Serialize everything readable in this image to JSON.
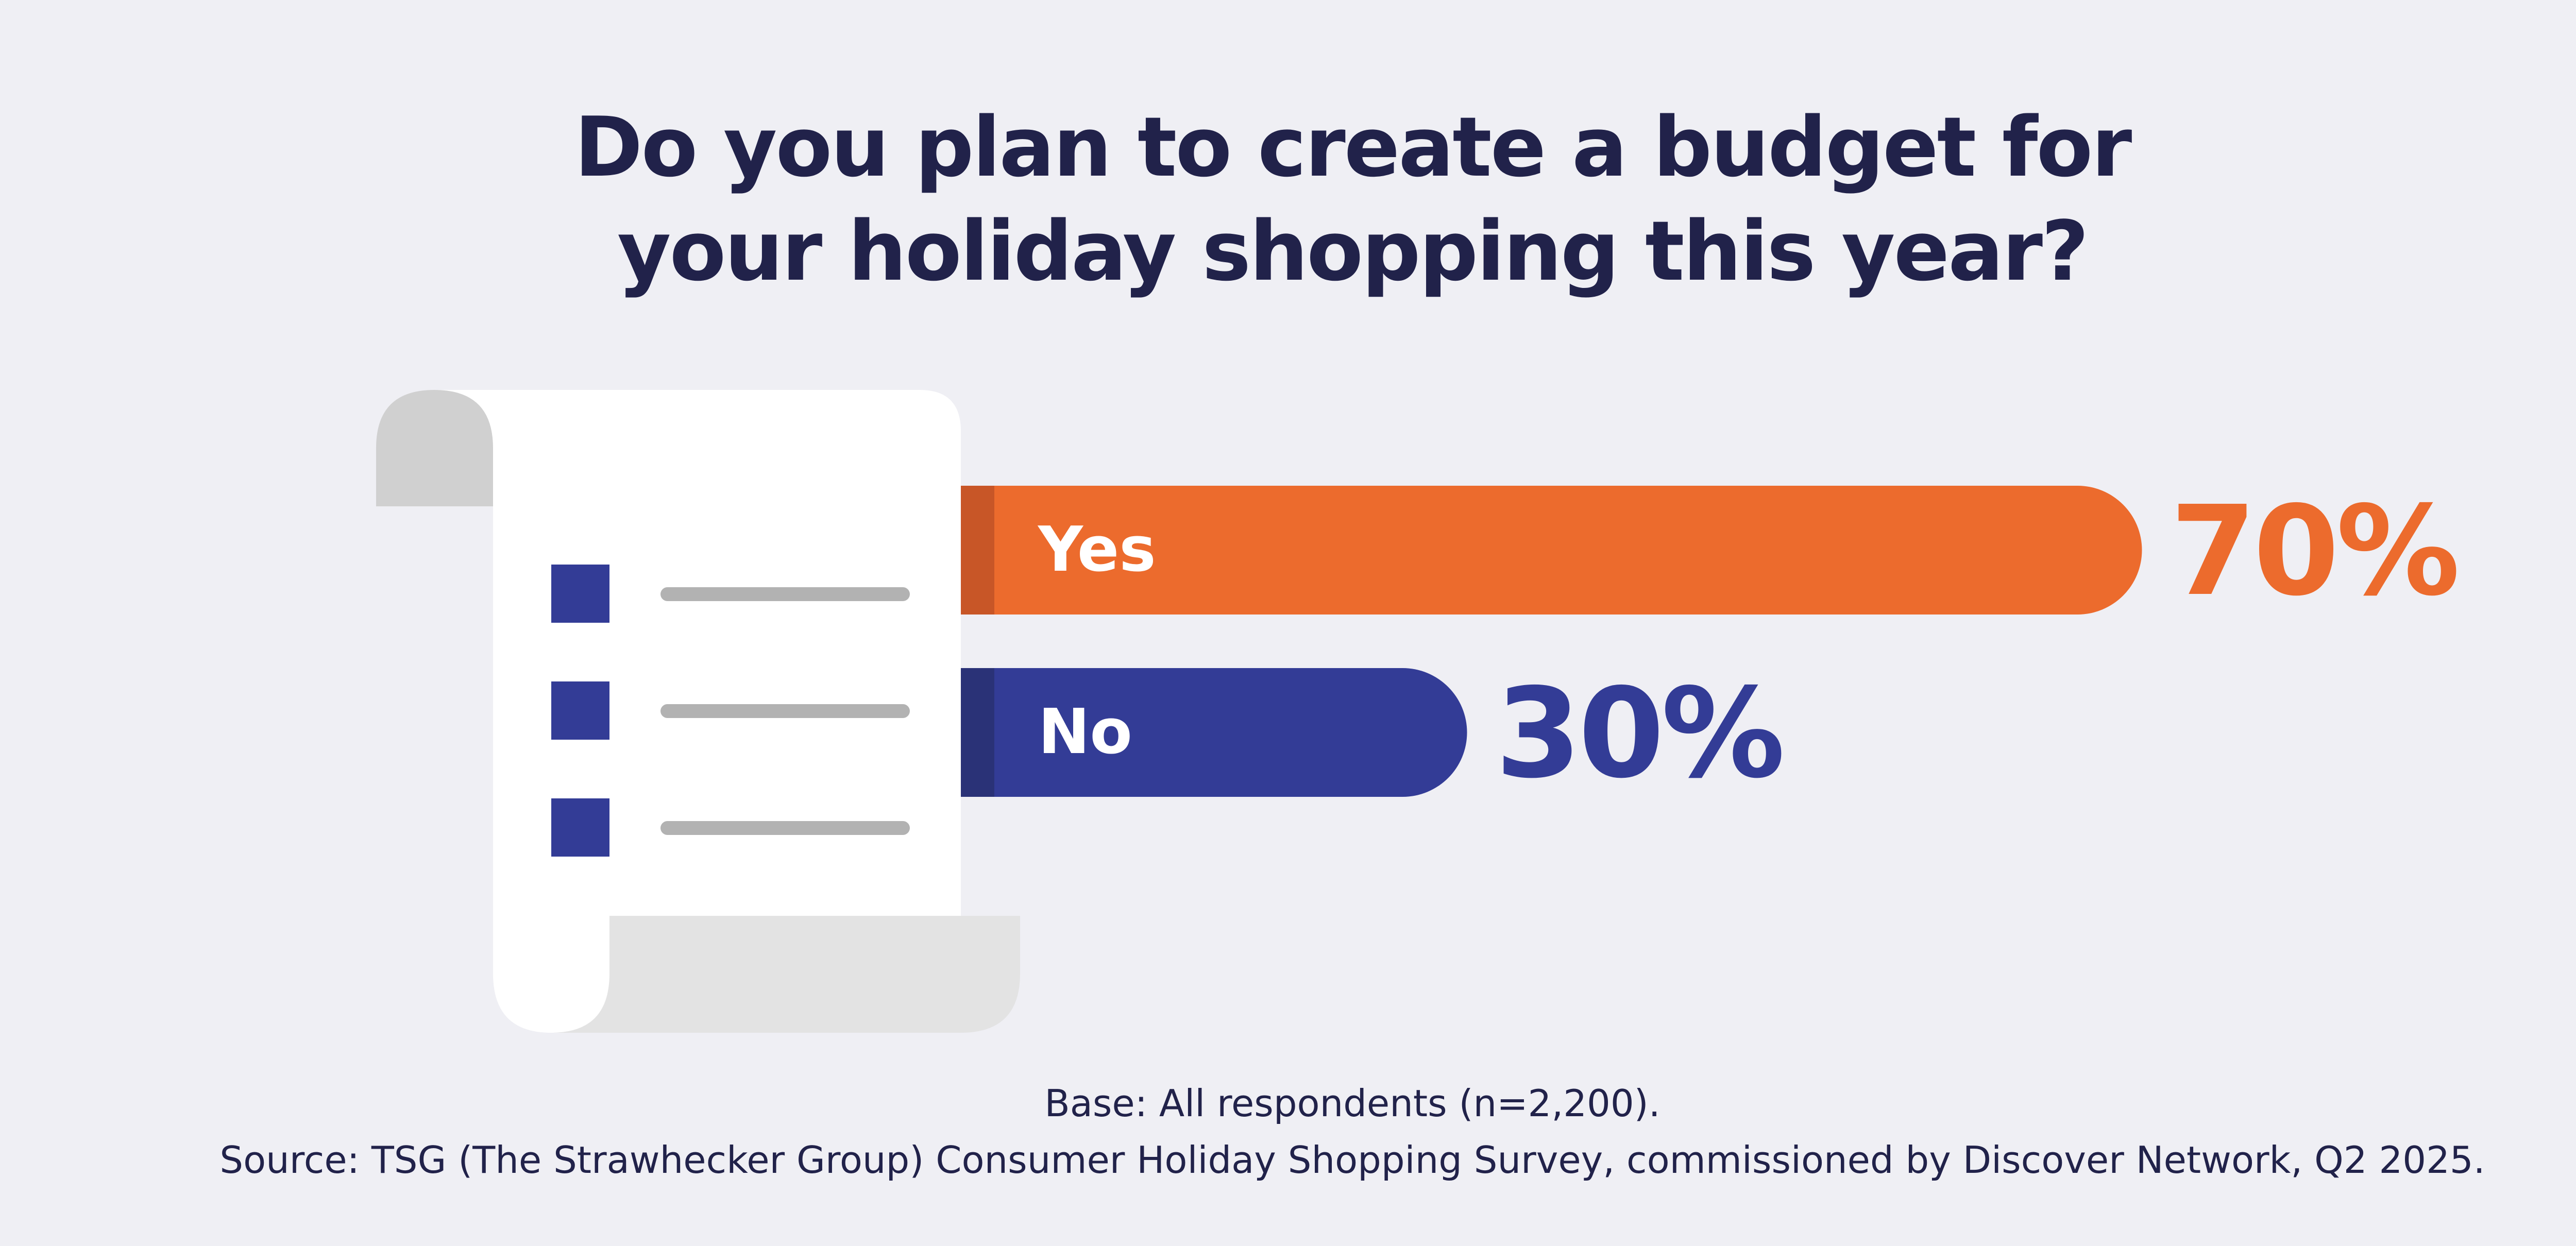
{
  "title_lines": [
    "Do you plan to create a budget for",
    "your holiday shopping this year?"
  ],
  "chart_data": {
    "type": "bar",
    "orientation": "horizontal",
    "title": "Do you plan to create a budget for your holiday shopping this year?",
    "categories": [
      "Yes",
      "No"
    ],
    "values": [
      70,
      30
    ],
    "value_labels": [
      "70%",
      "30%"
    ],
    "unit": "%",
    "xlim": [
      0,
      100
    ],
    "grid": false,
    "colors": [
      "#ec6b2d",
      "#333c96"
    ],
    "accent_colors": [
      "#c85627",
      "#2a3277"
    ]
  },
  "illustration": {
    "name": "checklist-scroll-icon",
    "box_color": "#333c96",
    "line_color": "#b2b2b2",
    "paper_color": "#ffffff",
    "curl_color": "#d0d0d0",
    "bottom_roll_color": "#e3e3e3",
    "item_count": 3
  },
  "footer": {
    "base": "Base: All respondents (n=2,200).",
    "source": "Source: TSG (The Strawhecker Group) Consumer Holiday Shopping Survey, commissioned by Discover Network, Q2 2025."
  }
}
